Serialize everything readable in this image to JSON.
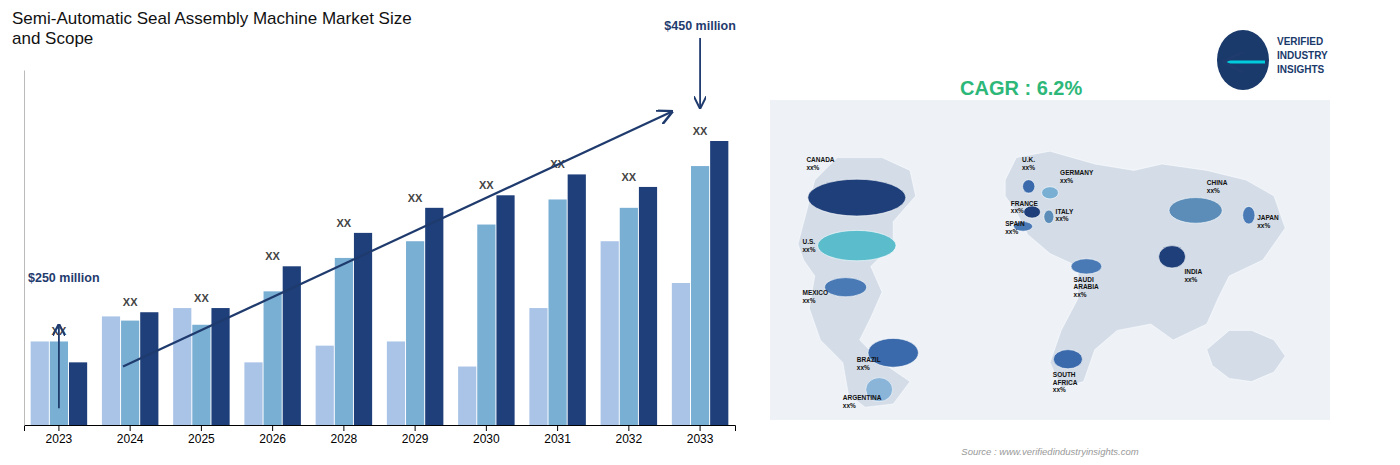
{
  "chart_data": {
    "type": "bar",
    "title": "Semi-Automatic Seal Assembly Machine Market Size\nand Scope",
    "categories": [
      "2023",
      "2024",
      "2025",
      "2026",
      "2028",
      "2029",
      "2030",
      "2031",
      "2032",
      "2033"
    ],
    "series": [
      {
        "color": "#aac4e8",
        "values": [
          0.2,
          0.26,
          0.28,
          0.15,
          0.19,
          0.2,
          0.14,
          0.28,
          0.44,
          0.34
        ]
      },
      {
        "color": "#7aafd4",
        "values": [
          0.2,
          0.25,
          0.24,
          0.32,
          0.4,
          0.44,
          0.48,
          0.54,
          0.52,
          0.62
        ]
      },
      {
        "color": "#1e3f7a",
        "values": [
          0.15,
          0.27,
          0.28,
          0.38,
          0.46,
          0.52,
          0.55,
          0.6,
          0.57,
          0.68
        ]
      }
    ],
    "ylim": [
      0,
      0.85
    ],
    "tick_labels": "x",
    "grid": false,
    "group_labels": [
      "XX",
      "XX",
      "XX",
      "XX",
      "XX",
      "XX",
      "XX",
      "XX",
      "XX",
      "XX"
    ],
    "annotations": [
      {
        "text": "$250 million"
      },
      {
        "text": "$450 million"
      },
      {
        "text": "CAGR : 6.2%",
        "color": "#2db87a"
      },
      {
        "text": "Source : www.verifiedindustryinsights.com"
      }
    ],
    "regions": [
      {
        "label": "CANADA\nxx%",
        "color": "#1e3f7a"
      },
      {
        "label": "U.S.\nxx%",
        "color": "#5bbccc"
      },
      {
        "label": "MEXICO\nxx%",
        "color": "#4a7ab5"
      },
      {
        "label": "BRAZIL\nxx%",
        "color": "#3a6aab"
      },
      {
        "label": "ARGENTINA\nxx%",
        "color": "#8ab4d8"
      },
      {
        "label": "U.K.\nxx%",
        "color": "#3a6aab"
      },
      {
        "label": "FRANCE\nxx%",
        "color": "#1e3f7a"
      },
      {
        "label": "GERMANY\nxx%",
        "color": "#7aafd4"
      },
      {
        "label": "SPAIN\nxx%",
        "color": "#4a7ab5"
      },
      {
        "label": "ITALY\nxx%",
        "color": "#5b8db8"
      },
      {
        "label": "SAUDI\nARABIA\nxx%",
        "color": "#4a7ab5"
      },
      {
        "label": "SOUTH\nAFRICA\nxx%",
        "color": "#3a6aab"
      },
      {
        "label": "CHINA\nxx%",
        "color": "#5b8db8"
      },
      {
        "label": "INDIA\nxx%",
        "color": "#1e3f7a"
      },
      {
        "label": "JAPAN\nxx%",
        "color": "#4a7ab5"
      }
    ],
    "logo_text": [
      "VERIFIED",
      "INDUSTRY",
      "INSIGHTS"
    ]
  }
}
